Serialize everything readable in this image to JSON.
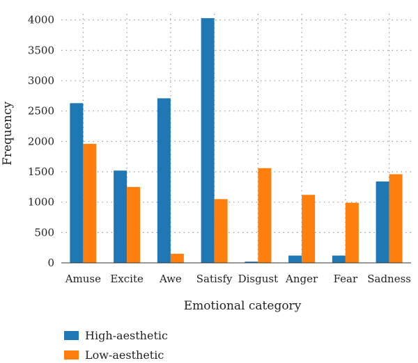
{
  "chart_data": {
    "type": "bar",
    "title": "",
    "xlabel": "Emotional category",
    "ylabel": "Frequency",
    "categories": [
      "Amuse",
      "Excite",
      "Awe",
      "Satisfy",
      "Disgust",
      "Anger",
      "Fear",
      "Sadness"
    ],
    "series": [
      {
        "name": "High-aesthetic",
        "color": "#1f77b4",
        "values": [
          2630,
          1520,
          2710,
          4030,
          20,
          120,
          120,
          1340
        ]
      },
      {
        "name": "Low-aesthetic",
        "color": "#ff7f0e",
        "values": [
          1960,
          1250,
          150,
          1050,
          1560,
          1120,
          990,
          1460
        ]
      }
    ],
    "ylim": [
      0,
      4100
    ],
    "yticks": [
      0,
      500,
      1000,
      1500,
      2000,
      2500,
      3000,
      3500,
      4000
    ],
    "grid": true,
    "legend": "bottom-left"
  }
}
